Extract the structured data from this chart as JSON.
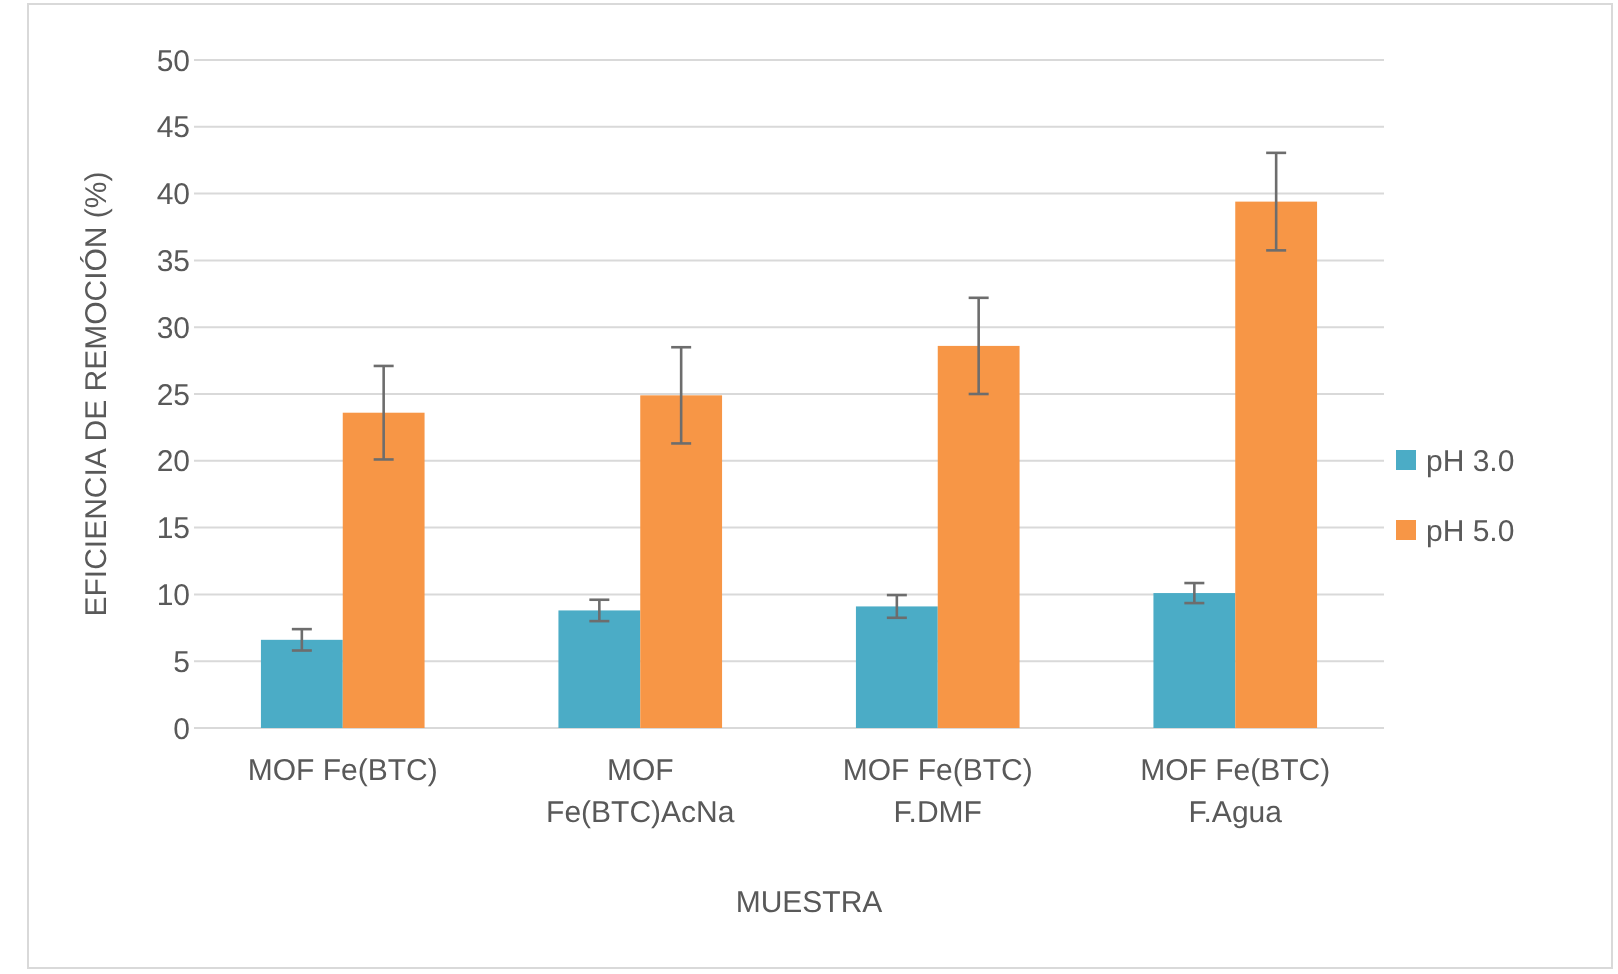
{
  "chart_data": {
    "type": "bar",
    "xlabel": "MUESTRA",
    "ylabel": "EFICIENCIA DE REMOCIÓN (%)",
    "categories": [
      "MOF Fe(BTC)",
      "MOF\nFe(BTC)AcNa",
      "MOF Fe(BTC)\nF.DMF",
      "MOF Fe(BTC)\nF.Agua"
    ],
    "series": [
      {
        "name": "pH 3.0",
        "color": "#4bacc6",
        "values": [
          6.6,
          8.8,
          9.1,
          10.1
        ],
        "errors": [
          0.8,
          0.8,
          0.85,
          0.75
        ]
      },
      {
        "name": "pH 5.0",
        "color": "#f79646",
        "values": [
          23.6,
          24.9,
          28.6,
          39.4
        ],
        "errors": [
          3.5,
          3.6,
          3.6,
          3.65
        ]
      }
    ],
    "ylim": [
      0,
      50
    ],
    "yticks": [
      0,
      5,
      10,
      15,
      20,
      25,
      30,
      35,
      40,
      45,
      50
    ],
    "grid": "y",
    "legend": "right"
  }
}
